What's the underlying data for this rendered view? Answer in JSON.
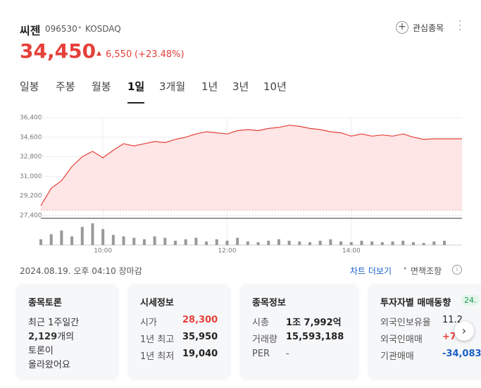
{
  "header": {
    "name": "씨젠",
    "code": "096530",
    "separator": "•",
    "market": "KOSDAQ",
    "watch": "관심종목",
    "price": "34,450",
    "change_arrow": "▲",
    "change": "6,550",
    "change_pct": "(+23.48%)"
  },
  "tabs": [
    "일봉",
    "주봉",
    "월봉",
    "1일",
    "3개월",
    "1년",
    "3년",
    "10년"
  ],
  "selected_tab": 3,
  "chart_data": {
    "type": "line",
    "x": [
      540,
      550,
      560,
      570,
      580,
      590,
      600,
      610,
      620,
      630,
      640,
      650,
      660,
      670,
      680,
      690,
      700,
      710,
      720,
      730,
      740,
      750,
      760,
      770,
      780,
      790,
      800,
      810,
      820,
      830,
      840,
      850,
      860,
      870,
      880,
      890,
      900,
      910,
      920,
      930,
      947
    ],
    "xlim": [
      540,
      947
    ],
    "xticks": [
      {
        "value": 600,
        "label": "10:00"
      },
      {
        "value": 720,
        "label": "12:00"
      },
      {
        "value": 840,
        "label": "14:00"
      }
    ],
    "ylim": [
      27400,
      36400
    ],
    "yticks": [
      {
        "value": 27400,
        "label": "27,400"
      },
      {
        "value": 29200,
        "label": "29,200"
      },
      {
        "value": 31000,
        "label": "31,000"
      },
      {
        "value": 32800,
        "label": "32,800"
      },
      {
        "value": 34600,
        "label": "34,600"
      },
      {
        "value": 36400,
        "label": "36,400"
      }
    ],
    "grid": true,
    "reference_line": 27900,
    "series": [
      {
        "color": "#e5403a",
        "values": [
          28300,
          29900,
          30600,
          31900,
          32800,
          33300,
          32700,
          33400,
          34000,
          33800,
          34000,
          34200,
          34100,
          34400,
          34600,
          34900,
          35100,
          35000,
          34900,
          35200,
          35300,
          35200,
          35400,
          35500,
          35700,
          35600,
          35400,
          35300,
          35100,
          35000,
          34700,
          34900,
          34700,
          34800,
          34700,
          34900,
          34600,
          34400,
          34450,
          34450,
          34450
        ]
      },
      {
        "color": "#999999",
        "axis": "y2",
        "values": [
          8,
          15,
          20,
          12,
          25,
          30,
          22,
          14,
          12,
          10,
          8,
          12,
          10,
          6,
          8,
          10,
          5,
          8,
          6,
          10,
          5,
          4,
          6,
          8,
          6,
          5,
          4,
          6,
          8,
          5,
          4,
          6,
          5,
          4,
          5,
          6,
          4,
          3,
          5,
          6,
          0
        ]
      }
    ],
    "y2lim": [
      0,
      35
    ]
  },
  "footer": {
    "timestamp": "2024.08.19. 오후 04:10 장마감",
    "more": "차트 더보기",
    "separator": "•",
    "disclaimer": "면책조항"
  },
  "cards": {
    "discussion": {
      "title": "종목토론",
      "line1": "최근 1주일간",
      "count": "2,129",
      "count_suffix": "개의",
      "line3": "토론이",
      "line4": "올라왔어요"
    },
    "quote": {
      "title": "시세정보",
      "rows": [
        [
          "시가",
          "28,300"
        ],
        [
          "1년 최고",
          "35,950"
        ],
        [
          "1년 최저",
          "19,040"
        ]
      ]
    },
    "info": {
      "title": "종목정보",
      "rows": [
        [
          "시총",
          "1조 7,992억"
        ],
        [
          "거래량",
          "15,593,188"
        ],
        [
          "PER",
          "-"
        ]
      ]
    },
    "investor": {
      "title": "투자자별 매매동향",
      "badge": "24.",
      "rows": [
        [
          "외국인보유율",
          "11.2"
        ],
        [
          "외국인매매",
          "+7"
        ],
        [
          "기관매매",
          "-34,083"
        ]
      ]
    }
  }
}
